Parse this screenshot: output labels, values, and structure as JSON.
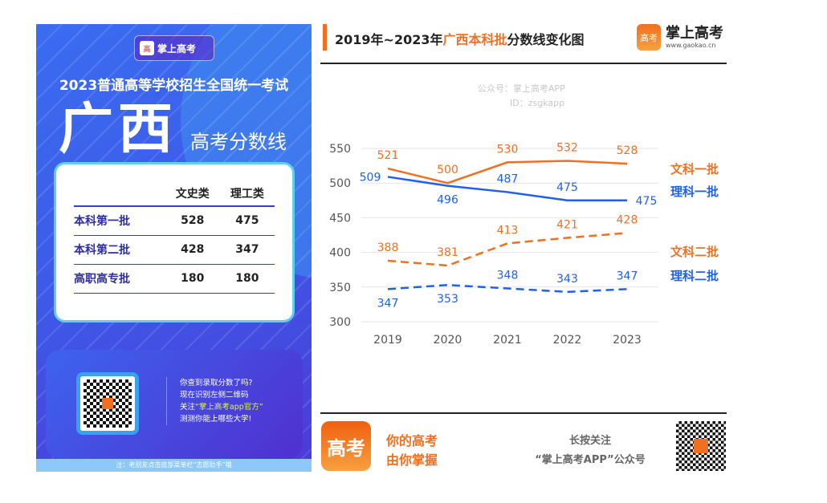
{
  "poster": {
    "logo_text": "掌上高考",
    "logo_url": "www.gaokao.cn",
    "exam_title": "2023普通高等学校招生全国统一考试",
    "region": "广西",
    "subtitle": "高考分数线",
    "table": {
      "headers": [
        "",
        "文史类",
        "理工类"
      ],
      "rows": [
        [
          "本科第一批",
          "528",
          "475"
        ],
        [
          "本科第二批",
          "428",
          "347"
        ],
        [
          "高职高专批",
          "180",
          "180"
        ]
      ]
    },
    "promo": [
      "你查到录取分数了吗?",
      "现在识别左侧二维码",
      "关注",
      "“掌上高考app官方”",
      "测测你能上哪些大学!"
    ],
    "note": "注：老朋友点击底部菜单栏“志愿助手”哦"
  },
  "header": {
    "title_pre": "2019年~2023年",
    "title_accent": "广西本科批",
    "title_post": "分数线变化图",
    "brand": "掌上高考",
    "brand_url": "www.gaokao.cn",
    "logo_glyph": "高考"
  },
  "footer": {
    "logo_glyph": "高考",
    "slogan1": "你的高考",
    "slogan2": "由你掌握",
    "follow1": "长按关注",
    "follow2": "“掌上高考APP”公众号"
  },
  "watermark": [
    "公众号：掌上高考APP",
    "ID：zsgkapp"
  ],
  "colors": {
    "orange": "#f07020",
    "blue": "#2060f0"
  },
  "chart_data": {
    "type": "line",
    "categories": [
      "2019",
      "2020",
      "2021",
      "2022",
      "2023"
    ],
    "ylim": [
      300,
      550
    ],
    "yticks": [
      300,
      350,
      400,
      450,
      500,
      550
    ],
    "grid": "horizontal",
    "legend": "right",
    "series": [
      {
        "name": "文科一批",
        "values": [
          521,
          500,
          530,
          532,
          528
        ],
        "color": "#f07020",
        "dash": false
      },
      {
        "name": "理科一批",
        "values": [
          509,
          496,
          487,
          475,
          475
        ],
        "color": "#2060f0",
        "dash": false
      },
      {
        "name": "文科二批",
        "values": [
          388,
          381,
          413,
          421,
          428
        ],
        "color": "#f07020",
        "dash": true
      },
      {
        "name": "理科二批",
        "values": [
          347,
          353,
          348,
          343,
          347
        ],
        "color": "#2060f0",
        "dash": true
      }
    ]
  }
}
